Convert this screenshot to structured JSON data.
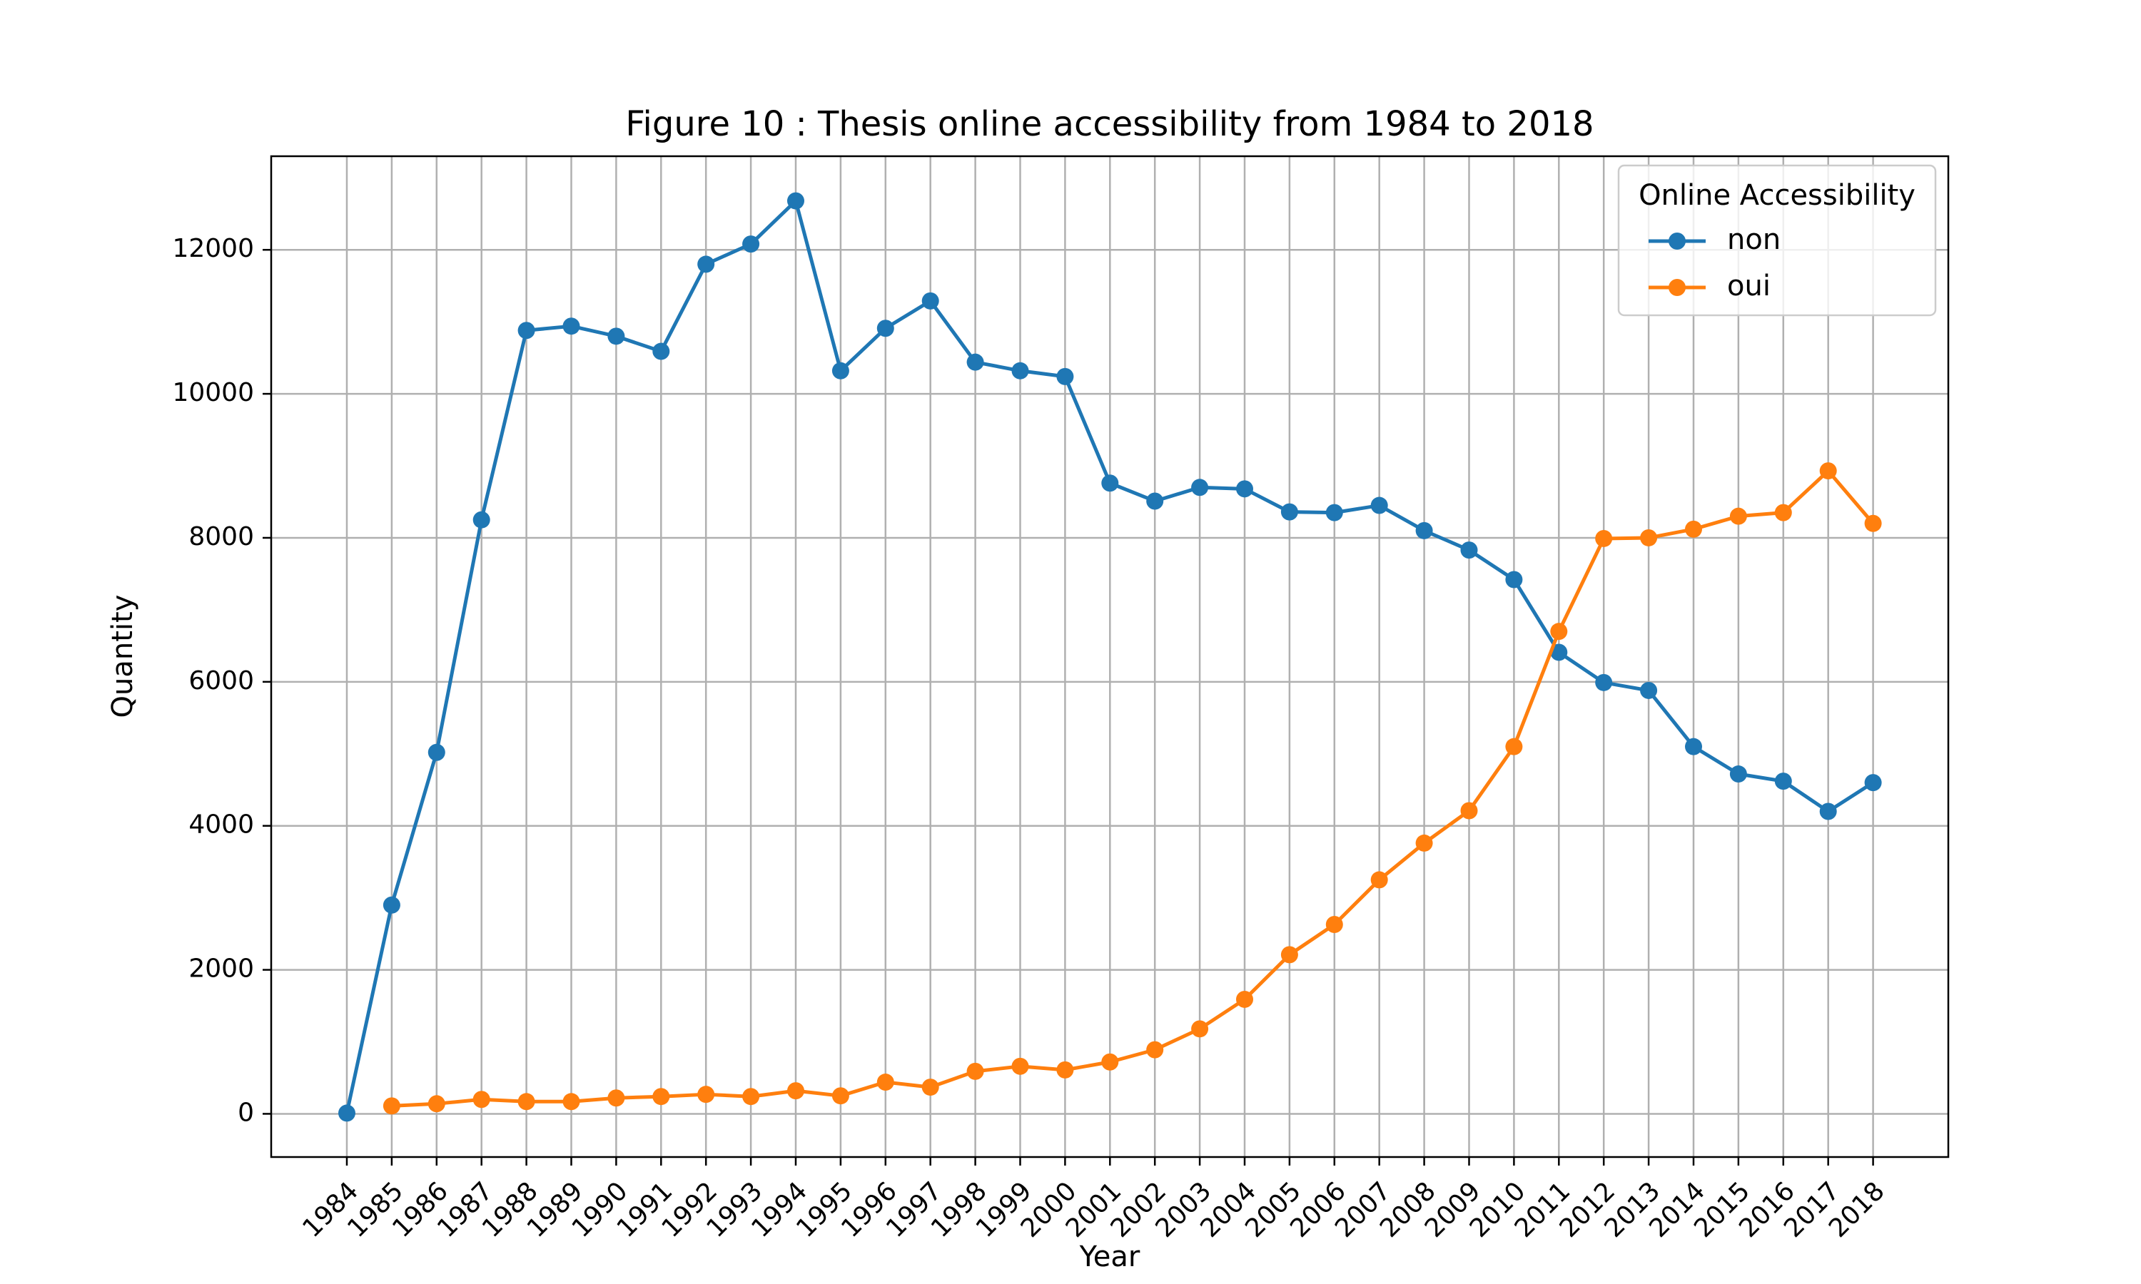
{
  "chart_data": {
    "type": "line",
    "title": "Figure 10 : Thesis online accessibility from 1984 to 2018",
    "xlabel": "Year",
    "ylabel": "Quantity",
    "x": [
      "1984",
      "1985",
      "1986",
      "1987",
      "1988",
      "1989",
      "1990",
      "1991",
      "1992",
      "1993",
      "1994",
      "1995",
      "1996",
      "1997",
      "1998",
      "1999",
      "2000",
      "2001",
      "2002",
      "2003",
      "2004",
      "2005",
      "2006",
      "2007",
      "2008",
      "2009",
      "2010",
      "2011",
      "2012",
      "2013",
      "2014",
      "2015",
      "2016",
      "2017",
      "2018"
    ],
    "yticks": [
      0,
      2000,
      4000,
      6000,
      8000,
      10000,
      12000
    ],
    "ylim": [
      -600,
      13300
    ],
    "grid": true,
    "legend": {
      "title": "Online Accessibility",
      "placement": "top-right"
    },
    "series": [
      {
        "name": "non",
        "color": "#1f77b4",
        "values": [
          10,
          2900,
          5020,
          8250,
          10880,
          10940,
          10800,
          10590,
          11800,
          12080,
          12680,
          10320,
          10910,
          11290,
          10440,
          10320,
          10240,
          8760,
          8510,
          8700,
          8680,
          8360,
          8350,
          8450,
          8100,
          7830,
          7420,
          6410,
          5990,
          5880,
          5100,
          4720,
          4620,
          4200,
          4600
        ]
      },
      {
        "name": "oui",
        "color": "#ff7f0e",
        "values": [
          null,
          110,
          140,
          200,
          170,
          170,
          220,
          240,
          270,
          240,
          320,
          250,
          440,
          370,
          590,
          660,
          610,
          720,
          890,
          1180,
          1590,
          2210,
          2630,
          3250,
          3760,
          4210,
          5100,
          6700,
          7990,
          8000,
          8120,
          8300,
          8350,
          8930,
          8200
        ]
      }
    ]
  }
}
